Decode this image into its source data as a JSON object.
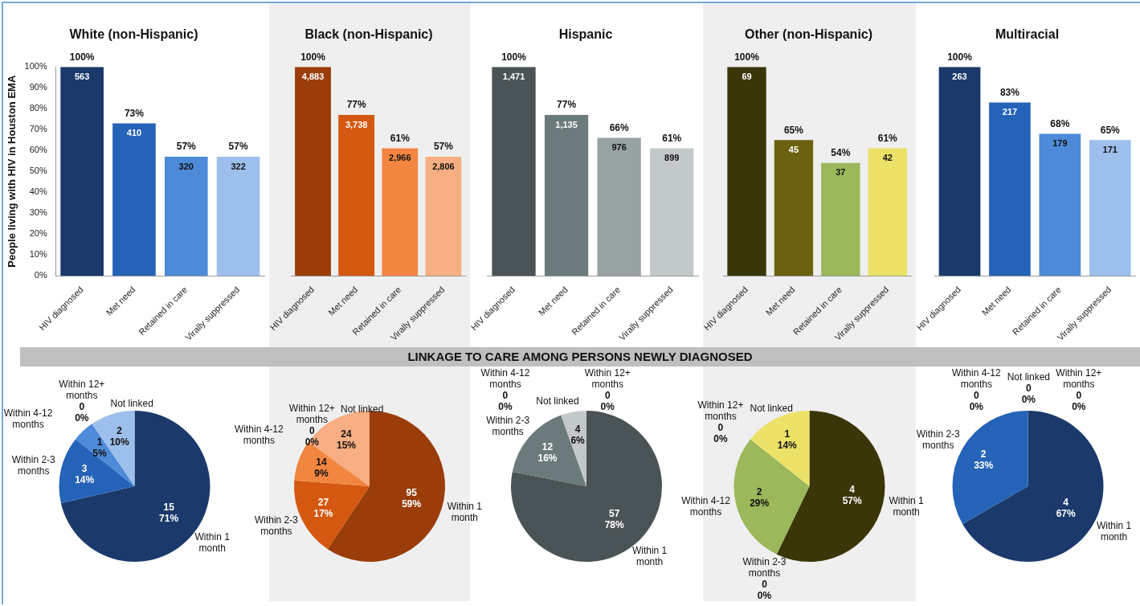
{
  "chart_data": [
    {
      "type": "bar",
      "title": "White (non-Hispanic)",
      "ylabel": "People living with HIV in Houston EMA",
      "categories": [
        "HIV diagnosed",
        "Met need",
        "Retained in care",
        "Virally suppressed"
      ],
      "values": [
        100,
        73,
        57,
        57
      ],
      "colors": [
        "#1b3a6b",
        "#2563b8",
        "#4d8ad8",
        "#9dbfeb"
      ],
      "value_labels": [
        "100%",
        "73%",
        "57%",
        "57%"
      ],
      "annotations": [
        {
          "text": "563",
          "x": "HIV diagnosed",
          "y": 100
        },
        {
          "text": "410",
          "x": "Met need",
          "y": 73
        },
        {
          "text": "320",
          "x": "Retained in care",
          "y": 57
        },
        {
          "text": "322",
          "x": "Virally suppressed",
          "y": 57
        }
      ],
      "ylim": [
        0,
        100
      ],
      "yticks": [
        {
          "value": 0,
          "label": "0%"
        },
        {
          "value": 10,
          "label": "10%"
        },
        {
          "value": 20,
          "label": "20%"
        },
        {
          "value": 30,
          "label": "30%"
        },
        {
          "value": 40,
          "label": "40%"
        },
        {
          "value": 50,
          "label": "50%"
        },
        {
          "value": 60,
          "label": "60%"
        },
        {
          "value": 70,
          "label": "70%"
        },
        {
          "value": 80,
          "label": "80%"
        },
        {
          "value": 90,
          "label": "90%"
        },
        {
          "value": 100,
          "label": "100%"
        }
      ],
      "grid": false
    },
    {
      "type": "bar",
      "title": "Black (non-Hispanic)",
      "categories": [
        "HIV diagnosed",
        "Met need",
        "Retained in care",
        "Virally suppressed"
      ],
      "values": [
        100,
        77,
        61,
        57
      ],
      "colors": [
        "#9a3d0a",
        "#d4580f",
        "#f28640",
        "#f6ae82"
      ],
      "value_labels": [
        "100%",
        "77%",
        "61%",
        "57%"
      ],
      "annotations": [
        {
          "text": "4,883",
          "x": "HIV diagnosed",
          "y": 100
        },
        {
          "text": "3,738",
          "x": "Met need",
          "y": 77
        },
        {
          "text": "2,966",
          "x": "Retained in care",
          "y": 61
        },
        {
          "text": "2,806",
          "x": "Virally suppressed",
          "y": 57
        }
      ],
      "ylim": [
        0,
        100
      ],
      "tick_labels": "x",
      "grid": false
    },
    {
      "type": "bar",
      "title": "Hispanic",
      "categories": [
        "HIV diagnosed",
        "Met need",
        "Retained in care",
        "Virally suppressed"
      ],
      "values": [
        100,
        77,
        66,
        61
      ],
      "colors": [
        "#4a5355",
        "#6b7a7b",
        "#97a2a3",
        "#c3c9ca"
      ],
      "value_labels": [
        "100%",
        "77%",
        "66%",
        "61%"
      ],
      "annotations": [
        {
          "text": "1,471",
          "x": "HIV diagnosed",
          "y": 100
        },
        {
          "text": "1,135",
          "x": "Met need",
          "y": 77
        },
        {
          "text": "976",
          "x": "Retained in care",
          "y": 66
        },
        {
          "text": "899",
          "x": "Virally suppressed",
          "y": 61
        }
      ],
      "ylim": [
        0,
        100
      ],
      "tick_labels": "x",
      "grid": false
    },
    {
      "type": "bar",
      "title": "Other (non-Hispanic)",
      "categories": [
        "HIV diagnosed",
        "Met need",
        "Retained in care",
        "Virally suppressed"
      ],
      "values": [
        100,
        65,
        54,
        61
      ],
      "colors": [
        "#3b3609",
        "#6b6211",
        "#9bb85a",
        "#ebe267"
      ],
      "value_labels": [
        "100%",
        "65%",
        "54%",
        "61%"
      ],
      "annotations": [
        {
          "text": "69",
          "x": "HIV diagnosed",
          "y": 100
        },
        {
          "text": "45",
          "x": "Met need",
          "y": 65
        },
        {
          "text": "37",
          "x": "Retained in care",
          "y": 54
        },
        {
          "text": "42",
          "x": "Virally suppressed",
          "y": 61
        }
      ],
      "ylim": [
        0,
        100
      ],
      "tick_labels": "x",
      "grid": false
    },
    {
      "type": "bar",
      "title": "Multiracial",
      "categories": [
        "HIV diagnosed",
        "Met need",
        "Retained in care",
        "Virally suppressed"
      ],
      "values": [
        100,
        83,
        68,
        65
      ],
      "colors": [
        "#1b3a6b",
        "#2563b8",
        "#4d8ad8",
        "#9dbfeb"
      ],
      "value_labels": [
        "100%",
        "83%",
        "68%",
        "65%"
      ],
      "annotations": [
        {
          "text": "263",
          "x": "HIV diagnosed",
          "y": 100
        },
        {
          "text": "217",
          "x": "Met need",
          "y": 83
        },
        {
          "text": "179",
          "x": "Retained in care",
          "y": 68
        },
        {
          "text": "171",
          "x": "Virally suppressed",
          "y": 65
        }
      ],
      "ylim": [
        0,
        100
      ],
      "tick_labels": "x",
      "grid": false
    },
    {
      "type": "other",
      "title": "LINKAGE TO CARE AMONG PERSONS NEWLY DIAGNOSED"
    },
    {
      "type": "pie",
      "categories": [
        "Within 1 month",
        "Within 2-3 months",
        "Within 4-12 months",
        "Within 12+ months",
        "Not linked"
      ],
      "values": [
        15,
        3,
        1,
        0,
        2
      ],
      "colors": [
        "#1b3a6b",
        "#2563b8",
        "#4d8ad8",
        "#7aa7e0",
        "#9dbfeb"
      ],
      "value_labels": [
        "15 71%",
        "3 14%",
        "1 5%",
        "0 0%",
        "2 10%"
      ]
    },
    {
      "type": "pie",
      "categories": [
        "Within 1 month",
        "Within 2-3 months",
        "Within 4-12 months",
        "Within 12+ months",
        "Not linked"
      ],
      "values": [
        95,
        27,
        14,
        0,
        24
      ],
      "colors": [
        "#9a3d0a",
        "#d4580f",
        "#f28640",
        "#f49a62",
        "#f6ae82"
      ],
      "value_labels": [
        "95 59%",
        "27 17%",
        "14 9%",
        "0 0%",
        "24 15%"
      ]
    },
    {
      "type": "pie",
      "categories": [
        "Within 1 month",
        "Within 2-3 months",
        "Within 4-12 months",
        "Within 12+ months",
        "Not linked"
      ],
      "values": [
        57,
        12,
        0,
        0,
        4
      ],
      "colors": [
        "#4a5355",
        "#6b7a7b",
        "#97a2a3",
        "#adb5b6",
        "#c3c9ca"
      ],
      "value_labels": [
        "57 78%",
        "12 16%",
        "0 0%",
        "0 0%",
        "4 6%"
      ]
    },
    {
      "type": "pie",
      "categories": [
        "Within 1 month",
        "Within 2-3 months",
        "Within 4-12 months",
        "Within 12+ months",
        "Not linked"
      ],
      "values": [
        4,
        0,
        2,
        0,
        1
      ],
      "colors": [
        "#3b3609",
        "#6b6211",
        "#9bb85a",
        "#c3cd60",
        "#ebe267"
      ],
      "value_labels": [
        "4 57%",
        "0 0%",
        "2 29%",
        "0 0%",
        "1 14%"
      ]
    },
    {
      "type": "pie",
      "categories": [
        "Within 1 month",
        "Within 2-3 months",
        "Within 4-12 months",
        "Within 12+ months",
        "Not linked"
      ],
      "values": [
        4,
        2,
        0,
        0,
        0
      ],
      "colors": [
        "#1b3a6b",
        "#2563b8",
        "#4d8ad8",
        "#7aa7e0",
        "#9dbfeb"
      ],
      "value_labels": [
        "4 67%",
        "2 33%",
        "0 0%",
        "0 0%",
        "0 0%"
      ]
    }
  ]
}
